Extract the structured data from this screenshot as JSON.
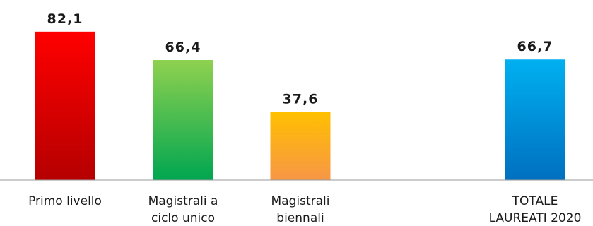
{
  "chart_data": {
    "type": "bar",
    "title": "",
    "xlabel": "",
    "ylabel": "",
    "ylim": [
      0,
      90
    ],
    "grid": false,
    "categories": [
      [
        "Primo livello"
      ],
      [
        "Magistrali a",
        "ciclo unico"
      ],
      [
        "Magistrali",
        "biennali"
      ],
      [
        "TOTALE",
        "LAUREATI 2020"
      ]
    ],
    "value_labels": [
      "82,1",
      "66,4",
      "37,6",
      "66,7"
    ],
    "values": [
      82.1,
      66.4,
      37.6,
      66.7
    ],
    "colors": [
      [
        "#ff0000",
        "#b50000"
      ],
      [
        "#8fd14f",
        "#00a650"
      ],
      [
        "#ffc000",
        "#f79646"
      ],
      [
        "#00b0f0",
        "#0070c0"
      ]
    ]
  }
}
